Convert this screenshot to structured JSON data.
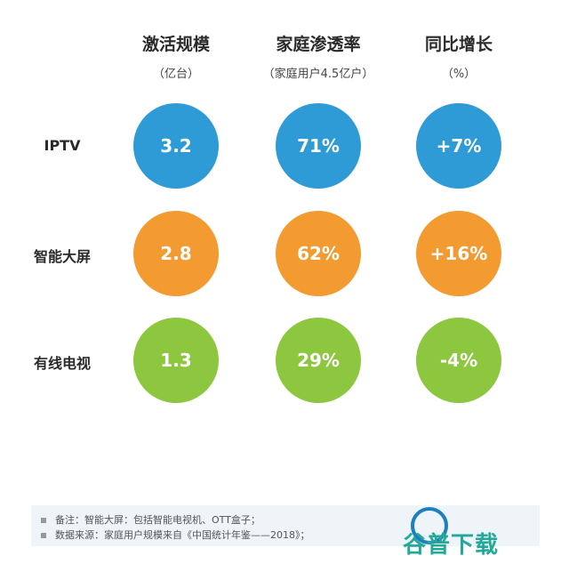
{
  "chart_data": {
    "type": "table",
    "columns": [
      {
        "title": "激活规模",
        "unit": "（亿台）"
      },
      {
        "title": "家庭渗透率",
        "unit": "（家庭用户4.5亿户）"
      },
      {
        "title": "同比增长",
        "unit": "（%）"
      }
    ],
    "rows": [
      {
        "label": "IPTV",
        "values": [
          "3.2",
          "71%",
          "+7%"
        ],
        "color": "#2e9bd6"
      },
      {
        "label": "智能大屏",
        "values": [
          "2.8",
          "62%",
          "+16%"
        ],
        "color": "#f39a30"
      },
      {
        "label": "有线电视",
        "values": [
          "1.3",
          "29%",
          "-4%"
        ],
        "color": "#8dc63f"
      }
    ]
  },
  "notes": [
    "备注：智能大屏：包括智能电视机、OTT盒子；",
    "数据来源：家庭用户规模来自《中国统计年鉴——2018》；"
  ],
  "watermark": "谷普下载"
}
